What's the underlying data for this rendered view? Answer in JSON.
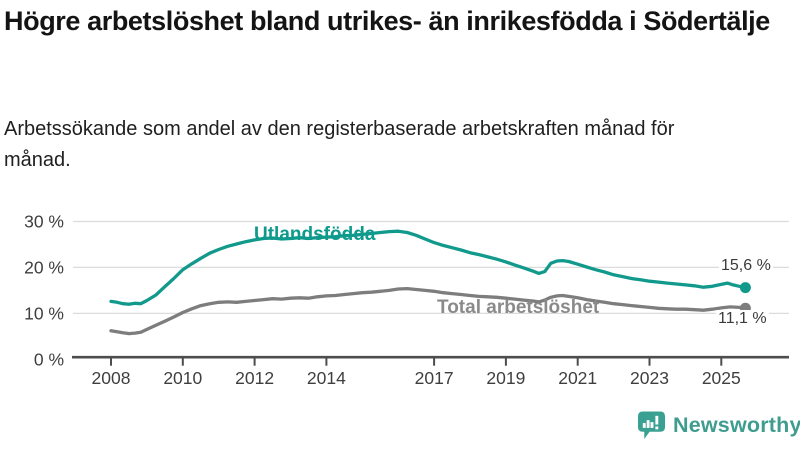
{
  "header": {
    "title": "Högre arbetslöshet bland utrikes- än inrikesfödda i Södertälje",
    "subtitle": "Arbetssökande som andel av den registerbaserade arbetskraften månad för månad."
  },
  "branding": {
    "logo_text": "Newsworthy",
    "logo_color": "#3f9d90",
    "logo_icon": "speech-bubble-bar-chart-exclamation",
    "logo_icon_color": "#3aa092"
  },
  "chart_data": {
    "type": "line",
    "title": "Högre arbetslöshet bland utrikes- än inrikesfödda i Södertälje",
    "xlabel": "",
    "ylabel": "",
    "grid": "horizontal",
    "legend_position": "inline-labels",
    "ylim": [
      0,
      30
    ],
    "xlim": [
      2007.9,
      2025.9
    ],
    "x_ticks": [
      2008,
      2010,
      2012,
      2014,
      2017,
      2019,
      2021,
      2023,
      2025
    ],
    "y_ticks_pct": [
      0,
      10,
      20,
      30
    ],
    "y_tick_labels": [
      "0 %",
      "10 %",
      "20 %",
      "30 %"
    ],
    "axis_color": "#4d4d4d",
    "gridline_color": "#dcdcdc",
    "tick_label_color": "#3f3f3f",
    "series": [
      {
        "name": "Utlandsfödda",
        "color": "#119a8c",
        "label_color": "#0e9a8c",
        "end_label": "15,6 %",
        "end_value": 15.6,
        "points": [
          [
            2008.0,
            12.6
          ],
          [
            2008.17,
            12.4
          ],
          [
            2008.33,
            12.1
          ],
          [
            2008.5,
            12.0
          ],
          [
            2008.67,
            12.2
          ],
          [
            2008.83,
            12.1
          ],
          [
            2009.0,
            12.8
          ],
          [
            2009.25,
            14.0
          ],
          [
            2009.5,
            15.8
          ],
          [
            2009.75,
            17.6
          ],
          [
            2010.0,
            19.5
          ],
          [
            2010.25,
            20.8
          ],
          [
            2010.5,
            22.0
          ],
          [
            2010.75,
            23.1
          ],
          [
            2011.0,
            23.9
          ],
          [
            2011.25,
            24.6
          ],
          [
            2011.5,
            25.1
          ],
          [
            2011.75,
            25.6
          ],
          [
            2012.0,
            26.0
          ],
          [
            2012.25,
            26.3
          ],
          [
            2012.5,
            26.4
          ],
          [
            2012.75,
            26.2
          ],
          [
            2013.0,
            26.3
          ],
          [
            2013.25,
            26.5
          ],
          [
            2013.5,
            26.3
          ],
          [
            2013.75,
            26.5
          ],
          [
            2014.0,
            26.6
          ],
          [
            2014.25,
            26.7
          ],
          [
            2014.5,
            26.9
          ],
          [
            2014.75,
            27.0
          ],
          [
            2015.0,
            27.2
          ],
          [
            2015.25,
            27.4
          ],
          [
            2015.5,
            27.6
          ],
          [
            2015.75,
            27.8
          ],
          [
            2016.0,
            27.9
          ],
          [
            2016.25,
            27.6
          ],
          [
            2016.5,
            27.0
          ],
          [
            2016.75,
            26.2
          ],
          [
            2017.0,
            25.4
          ],
          [
            2017.25,
            24.8
          ],
          [
            2017.5,
            24.3
          ],
          [
            2017.75,
            23.8
          ],
          [
            2018.0,
            23.2
          ],
          [
            2018.25,
            22.8
          ],
          [
            2018.5,
            22.3
          ],
          [
            2018.75,
            21.8
          ],
          [
            2019.0,
            21.2
          ],
          [
            2019.25,
            20.5
          ],
          [
            2019.5,
            19.9
          ],
          [
            2019.75,
            19.2
          ],
          [
            2019.92,
            18.7
          ],
          [
            2020.08,
            19.1
          ],
          [
            2020.25,
            20.9
          ],
          [
            2020.42,
            21.4
          ],
          [
            2020.58,
            21.5
          ],
          [
            2020.75,
            21.3
          ],
          [
            2021.0,
            20.7
          ],
          [
            2021.25,
            20.1
          ],
          [
            2021.5,
            19.5
          ],
          [
            2021.75,
            19.0
          ],
          [
            2022.0,
            18.4
          ],
          [
            2022.25,
            18.0
          ],
          [
            2022.5,
            17.6
          ],
          [
            2022.75,
            17.3
          ],
          [
            2023.0,
            17.0
          ],
          [
            2023.25,
            16.8
          ],
          [
            2023.5,
            16.6
          ],
          [
            2023.75,
            16.4
          ],
          [
            2024.0,
            16.2
          ],
          [
            2024.25,
            16.0
          ],
          [
            2024.5,
            15.7
          ],
          [
            2024.75,
            15.9
          ],
          [
            2025.0,
            16.3
          ],
          [
            2025.17,
            16.6
          ],
          [
            2025.33,
            16.2
          ],
          [
            2025.5,
            15.9
          ],
          [
            2025.67,
            15.6
          ]
        ]
      },
      {
        "name": "Total arbetslöshet",
        "color": "#7d7d7d",
        "label_color": "#8a8a8a",
        "end_label": "11,1 %",
        "end_value": 11.1,
        "points": [
          [
            2008.0,
            6.2
          ],
          [
            2008.17,
            6.0
          ],
          [
            2008.33,
            5.8
          ],
          [
            2008.5,
            5.6
          ],
          [
            2008.67,
            5.7
          ],
          [
            2008.83,
            5.9
          ],
          [
            2009.0,
            6.5
          ],
          [
            2009.25,
            7.4
          ],
          [
            2009.5,
            8.3
          ],
          [
            2009.75,
            9.2
          ],
          [
            2010.0,
            10.2
          ],
          [
            2010.25,
            11.0
          ],
          [
            2010.5,
            11.7
          ],
          [
            2010.75,
            12.1
          ],
          [
            2011.0,
            12.4
          ],
          [
            2011.25,
            12.5
          ],
          [
            2011.5,
            12.4
          ],
          [
            2011.75,
            12.6
          ],
          [
            2012.0,
            12.8
          ],
          [
            2012.25,
            13.0
          ],
          [
            2012.5,
            13.2
          ],
          [
            2012.75,
            13.1
          ],
          [
            2013.0,
            13.3
          ],
          [
            2013.25,
            13.4
          ],
          [
            2013.5,
            13.3
          ],
          [
            2013.75,
            13.6
          ],
          [
            2014.0,
            13.8
          ],
          [
            2014.25,
            13.9
          ],
          [
            2014.5,
            14.1
          ],
          [
            2014.75,
            14.3
          ],
          [
            2015.0,
            14.5
          ],
          [
            2015.25,
            14.6
          ],
          [
            2015.5,
            14.8
          ],
          [
            2015.75,
            15.0
          ],
          [
            2016.0,
            15.3
          ],
          [
            2016.25,
            15.4
          ],
          [
            2016.5,
            15.2
          ],
          [
            2016.75,
            15.0
          ],
          [
            2017.0,
            14.8
          ],
          [
            2017.25,
            14.5
          ],
          [
            2017.5,
            14.3
          ],
          [
            2017.75,
            14.1
          ],
          [
            2018.0,
            13.9
          ],
          [
            2018.25,
            13.7
          ],
          [
            2018.5,
            13.6
          ],
          [
            2018.75,
            13.5
          ],
          [
            2019.0,
            13.3
          ],
          [
            2019.25,
            13.1
          ],
          [
            2019.5,
            12.9
          ],
          [
            2019.75,
            12.7
          ],
          [
            2019.92,
            12.5
          ],
          [
            2020.08,
            12.9
          ],
          [
            2020.25,
            13.5
          ],
          [
            2020.42,
            13.8
          ],
          [
            2020.58,
            13.9
          ],
          [
            2020.75,
            13.7
          ],
          [
            2021.0,
            13.4
          ],
          [
            2021.25,
            13.0
          ],
          [
            2021.5,
            12.7
          ],
          [
            2021.75,
            12.4
          ],
          [
            2022.0,
            12.1
          ],
          [
            2022.25,
            11.9
          ],
          [
            2022.5,
            11.7
          ],
          [
            2022.75,
            11.5
          ],
          [
            2023.0,
            11.3
          ],
          [
            2023.25,
            11.1
          ],
          [
            2023.5,
            11.0
          ],
          [
            2023.75,
            10.9
          ],
          [
            2024.0,
            10.9
          ],
          [
            2024.25,
            10.8
          ],
          [
            2024.5,
            10.7
          ],
          [
            2024.75,
            10.9
          ],
          [
            2025.0,
            11.2
          ],
          [
            2025.25,
            11.4
          ],
          [
            2025.5,
            11.3
          ],
          [
            2025.67,
            11.1
          ]
        ]
      }
    ]
  }
}
